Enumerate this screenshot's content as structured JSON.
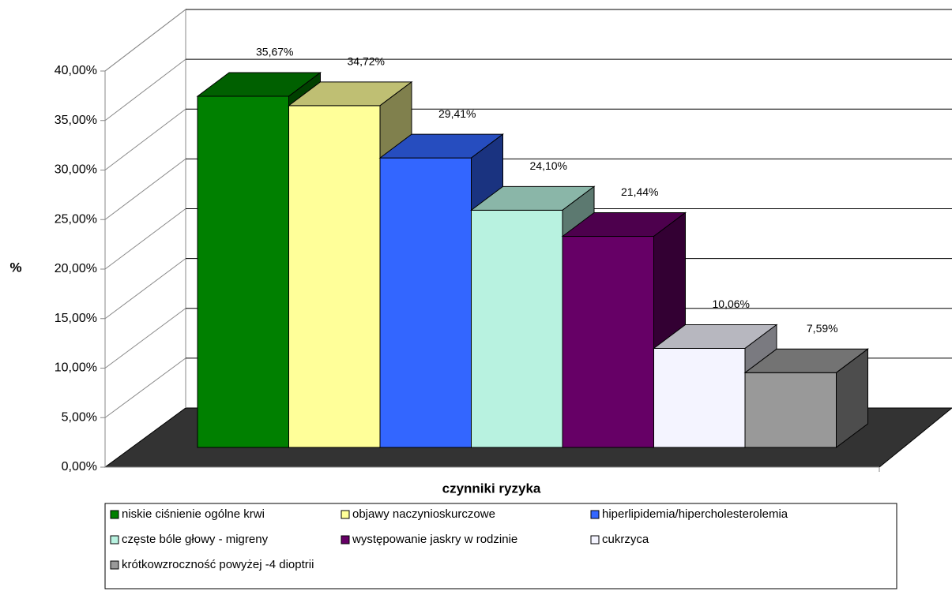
{
  "chart_data": {
    "type": "bar",
    "x_label": "czynniki ryzyka",
    "y_label": "%",
    "ylim": [
      0,
      40
    ],
    "yticks": [
      {
        "value": 0,
        "label": "0,00%"
      },
      {
        "value": 5,
        "label": "5,00%"
      },
      {
        "value": 10,
        "label": "10,00%"
      },
      {
        "value": 15,
        "label": "15,00%"
      },
      {
        "value": 20,
        "label": "20,00%"
      },
      {
        "value": 25,
        "label": "25,00%"
      },
      {
        "value": 30,
        "label": "30,00%"
      },
      {
        "value": 35,
        "label": "35,00%"
      },
      {
        "value": 40,
        "label": "40,00%"
      }
    ],
    "grid": true,
    "series": [
      {
        "name": "niskie ciśnienie ogólne krwi",
        "color": "#008000",
        "values": [
          35.67
        ],
        "value_labels": [
          "35,67%"
        ]
      },
      {
        "name": "objawy naczynioskurczowe",
        "color": "#ffff99",
        "values": [
          34.72
        ],
        "value_labels": [
          "34,72%"
        ]
      },
      {
        "name": "hiperlipidemia/hipercholesterolemia",
        "color": "#3366ff",
        "values": [
          29.41
        ],
        "value_labels": [
          "29,41%"
        ]
      },
      {
        "name": "częste bóle głowy - migreny",
        "color": "#b8f2e0",
        "values": [
          24.1
        ],
        "value_labels": [
          "24,10%"
        ]
      },
      {
        "name": "występowanie jaskry w rodzinie",
        "color": "#660066",
        "values": [
          21.44
        ],
        "value_labels": [
          "21,44%"
        ]
      },
      {
        "name": "cukrzyca",
        "color": "#f4f4ff",
        "values": [
          10.06
        ],
        "value_labels": [
          "10,06%"
        ]
      },
      {
        "name": "krótkowzroczność powyżej -4 dioptrii",
        "color": "#999999",
        "values": [
          7.59
        ],
        "value_labels": [
          "7,59%"
        ]
      }
    ]
  }
}
